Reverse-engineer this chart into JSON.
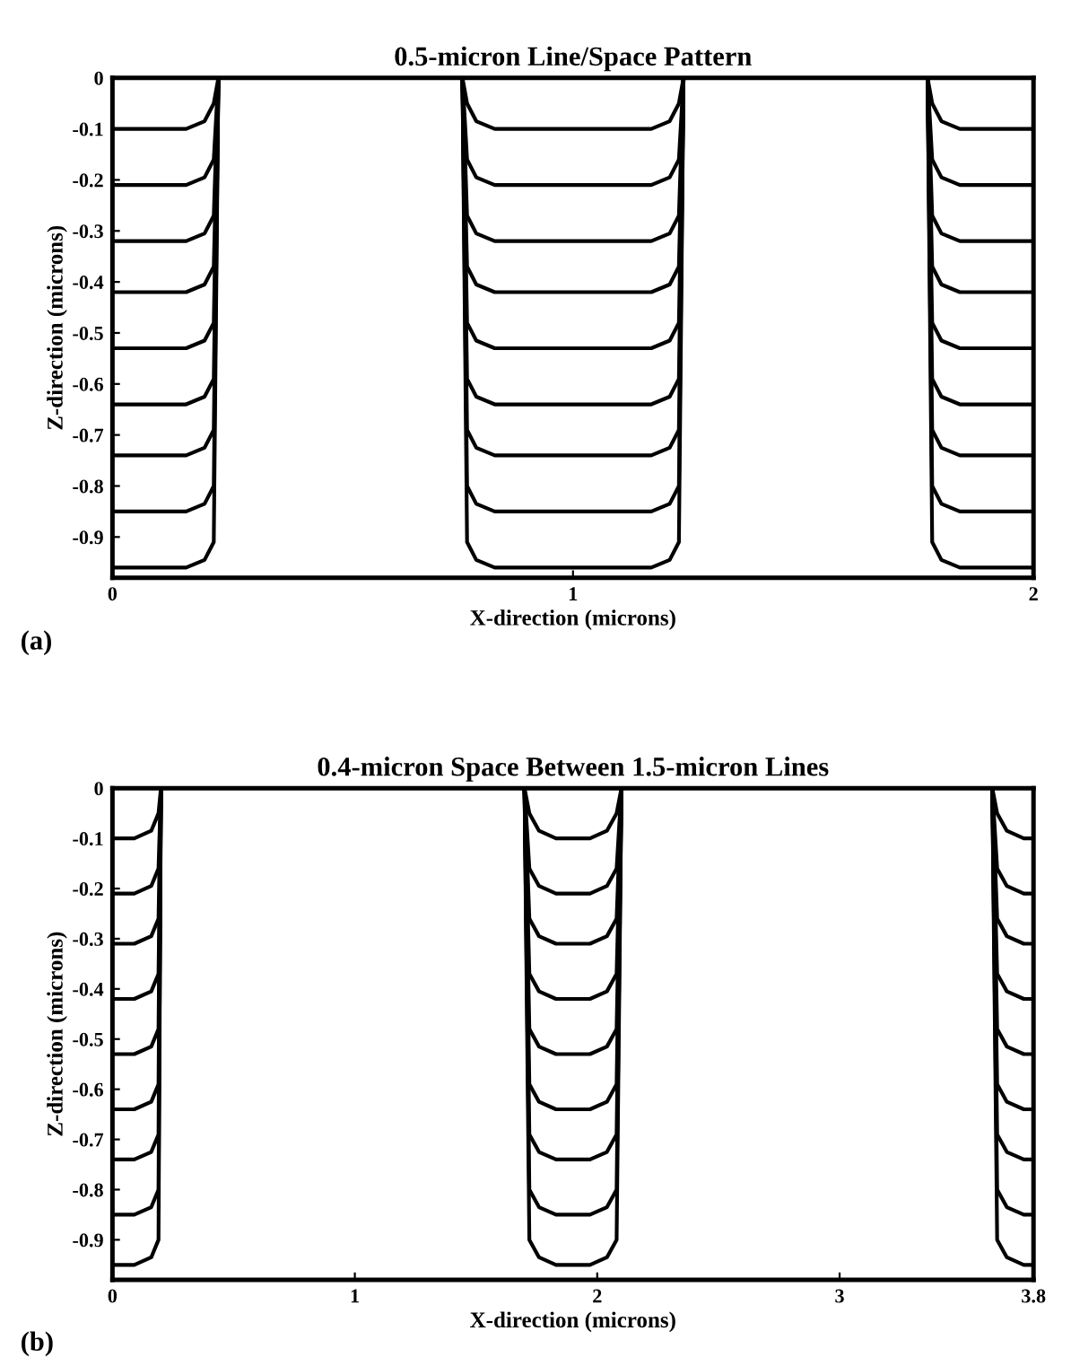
{
  "chart_data": [
    {
      "type": "line",
      "title": "0.5-micron Line/Space Pattern",
      "xlabel": "X-direction (microns)",
      "ylabel": "Z-direction (microns)",
      "annotations": [
        "(a)"
      ],
      "x": [
        0,
        0.16,
        0.2,
        0.22,
        0.23,
        0.5,
        0.76,
        0.77,
        0.79,
        0.83,
        1.0,
        1.17,
        1.21,
        1.23,
        1.24,
        1.5,
        1.77,
        1.78,
        1.8,
        1.84,
        2.0
      ],
      "xlim": [
        0,
        2
      ],
      "xticks": [
        0,
        1,
        2
      ],
      "ylim": [
        -0.98,
        0
      ],
      "yticks": [
        0,
        -0.1,
        -0.2,
        -0.3,
        -0.4,
        -0.5,
        -0.6,
        -0.7,
        -0.8,
        -0.9
      ],
      "marker": "none",
      "line_style": "solid",
      "series": [
        {
          "color": "#000000",
          "values": [
            -0.1,
            -0.1,
            -0.085,
            -0.05,
            0,
            null,
            0,
            -0.05,
            -0.085,
            -0.1,
            -0.1,
            -0.1,
            -0.085,
            -0.05,
            0,
            null,
            0,
            -0.05,
            -0.085,
            -0.1,
            -0.1
          ]
        },
        {
          "color": "#000000",
          "values": [
            -0.21,
            -0.21,
            -0.195,
            -0.16,
            0,
            null,
            0,
            -0.16,
            -0.195,
            -0.21,
            -0.21,
            -0.21,
            -0.195,
            -0.16,
            0,
            null,
            0,
            -0.16,
            -0.195,
            -0.21,
            -0.21
          ]
        },
        {
          "color": "#000000",
          "values": [
            -0.32,
            -0.32,
            -0.305,
            -0.27,
            0,
            null,
            0,
            -0.27,
            -0.305,
            -0.32,
            -0.32,
            -0.32,
            -0.305,
            -0.27,
            0,
            null,
            0,
            -0.27,
            -0.305,
            -0.32,
            -0.32
          ]
        },
        {
          "color": "#000000",
          "values": [
            -0.42,
            -0.42,
            -0.405,
            -0.37,
            0,
            null,
            0,
            -0.37,
            -0.405,
            -0.42,
            -0.42,
            -0.42,
            -0.405,
            -0.37,
            0,
            null,
            0,
            -0.37,
            -0.405,
            -0.42,
            -0.42
          ]
        },
        {
          "color": "#000000",
          "values": [
            -0.53,
            -0.53,
            -0.515,
            -0.48,
            0,
            null,
            0,
            -0.48,
            -0.515,
            -0.53,
            -0.53,
            -0.53,
            -0.515,
            -0.48,
            0,
            null,
            0,
            -0.48,
            -0.515,
            -0.53,
            -0.53
          ]
        },
        {
          "color": "#000000",
          "values": [
            -0.64,
            -0.64,
            -0.625,
            -0.59,
            0,
            null,
            0,
            -0.59,
            -0.625,
            -0.64,
            -0.64,
            -0.64,
            -0.625,
            -0.59,
            0,
            null,
            0,
            -0.59,
            -0.625,
            -0.64,
            -0.64
          ]
        },
        {
          "color": "#000000",
          "values": [
            -0.74,
            -0.74,
            -0.725,
            -0.69,
            0,
            null,
            0,
            -0.69,
            -0.725,
            -0.74,
            -0.74,
            -0.74,
            -0.725,
            -0.69,
            0,
            null,
            0,
            -0.69,
            -0.725,
            -0.74,
            -0.74
          ]
        },
        {
          "color": "#000000",
          "values": [
            -0.85,
            -0.85,
            -0.835,
            -0.8,
            0,
            null,
            0,
            -0.8,
            -0.835,
            -0.85,
            -0.85,
            -0.85,
            -0.835,
            -0.8,
            0,
            null,
            0,
            -0.8,
            -0.835,
            -0.85,
            -0.85
          ]
        },
        {
          "color": "#000000",
          "values": [
            -0.96,
            -0.96,
            -0.945,
            -0.91,
            0,
            null,
            0,
            -0.91,
            -0.945,
            -0.96,
            -0.96,
            -0.96,
            -0.945,
            -0.91,
            0,
            null,
            0,
            -0.91,
            -0.945,
            -0.96,
            -0.96
          ]
        }
      ]
    },
    {
      "type": "line",
      "title": "0.4-micron Space Between 1.5-micron Lines",
      "xlabel": "X-direction (microns)",
      "ylabel": "Z-direction (microns)",
      "annotations": [
        "(b)"
      ],
      "x": [
        0,
        0.09,
        0.16,
        0.19,
        0.2,
        1.0,
        1.7,
        1.72,
        1.76,
        1.83,
        1.9,
        1.97,
        2.04,
        2.08,
        2.1,
        3.0,
        3.63,
        3.65,
        3.69,
        3.76,
        3.8
      ],
      "xlim": [
        0,
        3.8
      ],
      "xticks": [
        0,
        1,
        2,
        3,
        3.8
      ],
      "ylim": [
        -0.98,
        0
      ],
      "yticks": [
        0,
        -0.1,
        -0.2,
        -0.3,
        -0.4,
        -0.5,
        -0.6,
        -0.7,
        -0.8,
        -0.9
      ],
      "marker": "none",
      "line_style": "solid",
      "series": [
        {
          "color": "#000000",
          "values": [
            -0.1,
            -0.1,
            -0.085,
            -0.05,
            0,
            null,
            0,
            -0.05,
            -0.085,
            -0.1,
            -0.1,
            -0.1,
            -0.085,
            -0.05,
            0,
            null,
            0,
            -0.05,
            -0.085,
            -0.1,
            -0.1
          ]
        },
        {
          "color": "#000000",
          "values": [
            -0.21,
            -0.21,
            -0.195,
            -0.16,
            0,
            null,
            0,
            -0.16,
            -0.195,
            -0.21,
            -0.21,
            -0.21,
            -0.195,
            -0.16,
            0,
            null,
            0,
            -0.16,
            -0.195,
            -0.21,
            -0.21
          ]
        },
        {
          "color": "#000000",
          "values": [
            -0.31,
            -0.31,
            -0.295,
            -0.26,
            0,
            null,
            0,
            -0.26,
            -0.295,
            -0.31,
            -0.31,
            -0.31,
            -0.295,
            -0.26,
            0,
            null,
            0,
            -0.26,
            -0.295,
            -0.31,
            -0.31
          ]
        },
        {
          "color": "#000000",
          "values": [
            -0.42,
            -0.42,
            -0.405,
            -0.37,
            0,
            null,
            0,
            -0.37,
            -0.405,
            -0.42,
            -0.42,
            -0.42,
            -0.405,
            -0.37,
            0,
            null,
            0,
            -0.37,
            -0.405,
            -0.42,
            -0.42
          ]
        },
        {
          "color": "#000000",
          "values": [
            -0.53,
            -0.53,
            -0.515,
            -0.48,
            0,
            null,
            0,
            -0.48,
            -0.515,
            -0.53,
            -0.53,
            -0.53,
            -0.515,
            -0.48,
            0,
            null,
            0,
            -0.48,
            -0.515,
            -0.53,
            -0.53
          ]
        },
        {
          "color": "#000000",
          "values": [
            -0.64,
            -0.64,
            -0.625,
            -0.59,
            0,
            null,
            0,
            -0.59,
            -0.625,
            -0.64,
            -0.64,
            -0.64,
            -0.625,
            -0.59,
            0,
            null,
            0,
            -0.59,
            -0.625,
            -0.64,
            -0.64
          ]
        },
        {
          "color": "#000000",
          "values": [
            -0.74,
            -0.74,
            -0.725,
            -0.69,
            0,
            null,
            0,
            -0.69,
            -0.725,
            -0.74,
            -0.74,
            -0.74,
            -0.725,
            -0.69,
            0,
            null,
            0,
            -0.69,
            -0.725,
            -0.74,
            -0.74
          ]
        },
        {
          "color": "#000000",
          "values": [
            -0.85,
            -0.85,
            -0.835,
            -0.8,
            0,
            null,
            0,
            -0.8,
            -0.835,
            -0.85,
            -0.85,
            -0.85,
            -0.835,
            -0.8,
            0,
            null,
            0,
            -0.8,
            -0.835,
            -0.85,
            -0.85
          ]
        },
        {
          "color": "#000000",
          "values": [
            -0.95,
            -0.95,
            -0.935,
            -0.9,
            0,
            null,
            0,
            -0.9,
            -0.935,
            -0.95,
            -0.95,
            -0.95,
            -0.935,
            -0.9,
            0,
            null,
            0,
            -0.9,
            -0.935,
            -0.95,
            -0.95
          ]
        }
      ]
    }
  ]
}
